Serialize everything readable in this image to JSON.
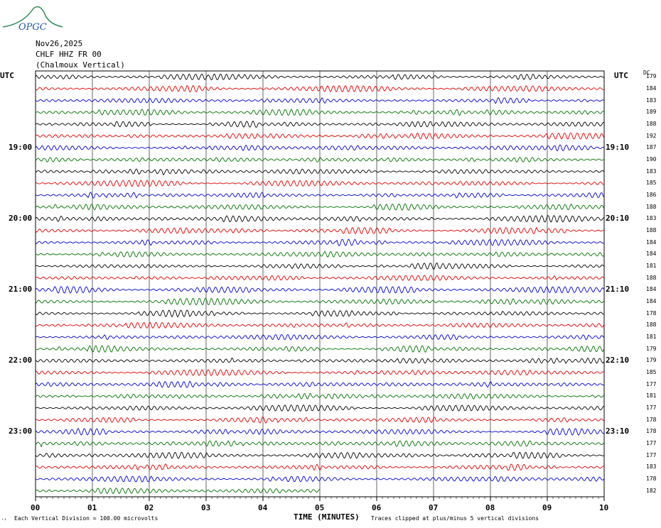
{
  "logo_text": "OPGC",
  "header": {
    "date": "Nov26,2025",
    "station": "CHLF HHZ FR 00",
    "location": "(Chalmoux Vertical)"
  },
  "utc_label_left": "UTC",
  "utc_label_right": "UTC",
  "dc_header": "DC",
  "left_time_labels": [
    "19:00",
    "20:00",
    "21:00",
    "22:00",
    "23:00"
  ],
  "right_time_labels": [
    "19:10",
    "20:10",
    "21:10",
    "22:10",
    "23:10"
  ],
  "footer": {
    "scale_note": "Each Vertical Division =  100.00 microvolts",
    "clip_note": "Traces clipped at plus/minus 5 vertical divisions",
    "corner_mark": "₊₁"
  },
  "colors": {
    "trace_cycle": [
      "#000000",
      "#e00000",
      "#0000cc",
      "#007000"
    ],
    "grid": "#000000"
  },
  "chart_data": {
    "type": "line",
    "title": "",
    "xlabel": "TIME (MINUTES)",
    "x_ticks": [
      "00",
      "01",
      "02",
      "03",
      "04",
      "05",
      "06",
      "07",
      "08",
      "09",
      "10"
    ],
    "xlim": [
      0,
      10
    ],
    "rows": 36,
    "row_minutes": 10,
    "last_row_end_minute": 5,
    "dc_offsets": [
      179,
      184,
      183,
      189,
      188,
      192,
      187,
      190,
      183,
      185,
      186,
      188,
      183,
      188,
      184,
      184,
      181,
      188,
      184,
      184,
      178,
      188,
      181,
      179,
      179,
      185,
      177,
      181,
      177,
      178,
      178,
      177,
      177,
      183,
      178,
      182
    ]
  }
}
